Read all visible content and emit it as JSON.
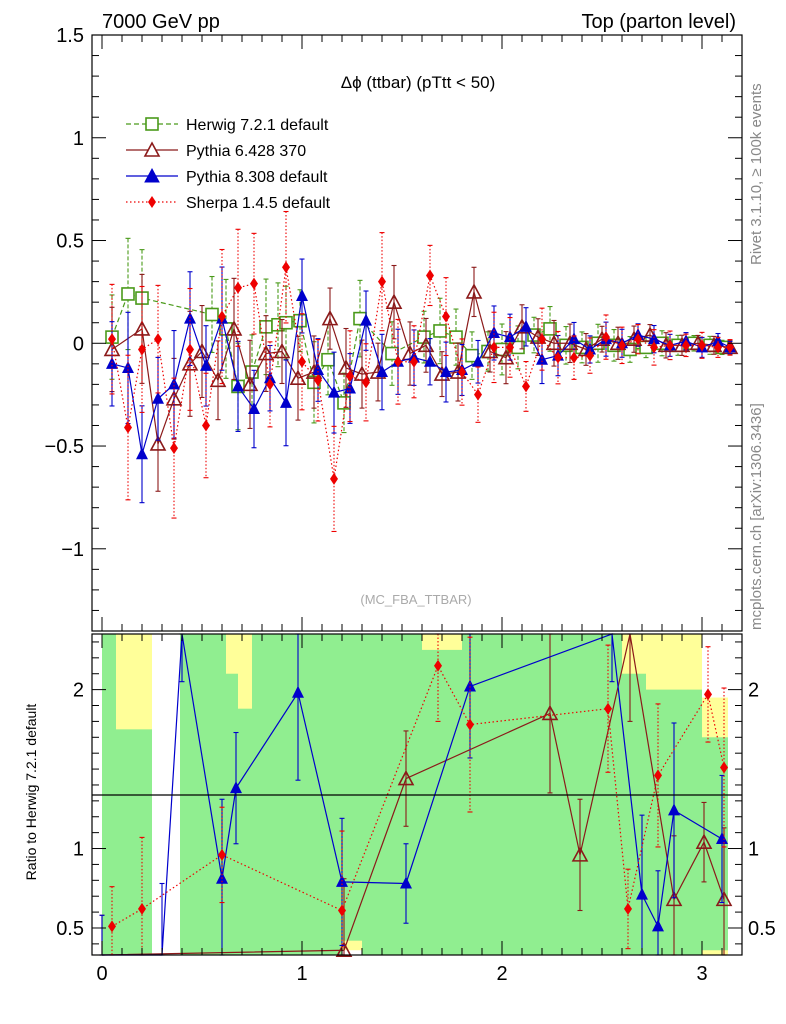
{
  "header": {
    "left": "7000 GeV pp",
    "right": "Top (parton level)"
  },
  "side_labels": {
    "rivet": "Rivet 3.1.10, ≥ 100k events",
    "mcplots": "mcplots.cern.ch [arXiv:1306.3436]"
  },
  "colors": {
    "herwig": "#4a9a1a",
    "pythia6": "#8b1a1a",
    "pythia8": "#0000cc",
    "sherpa": "#ee0000",
    "band_green": "#90ee90",
    "band_yellow": "#ffff99"
  },
  "chart_data": [
    {
      "type": "line",
      "panel": "main",
      "title": "Δϕ (ttbar) (pTtt < 50)",
      "watermark": "(MC_FBA_TTBAR)",
      "ylim": [
        -1.4,
        1.5
      ],
      "xlim": [
        -0.05,
        3.2
      ],
      "yticks": [
        -1,
        -0.5,
        0,
        0.5,
        1,
        1.5
      ],
      "ytick_labels": [
        "−1",
        "−0.5",
        "0",
        "0.5",
        "1",
        "1.5"
      ],
      "legend_position": "top-left",
      "series": [
        {
          "name": "Herwig 7.2.1 default",
          "marker": "open-square",
          "style": "dashed",
          "x": [
            0.05,
            0.13,
            0.2,
            0.55,
            0.62,
            0.68,
            0.75,
            0.82,
            0.88,
            0.92,
            0.99,
            1.06,
            1.13,
            1.21,
            1.29,
            1.45,
            1.61,
            1.69,
            1.77,
            1.85,
            1.93,
            2.0,
            2.08,
            2.16,
            2.24,
            2.32,
            2.4,
            2.48,
            2.56,
            2.64,
            2.72,
            2.8,
            2.88,
            2.96,
            3.04,
            3.1
          ],
          "y": [
            0.03,
            0.24,
            0.22,
            0.14,
            0.07,
            -0.21,
            -0.14,
            0.08,
            0.09,
            0.1,
            0.11,
            -0.19,
            -0.08,
            -0.29,
            0.12,
            -0.05,
            0.03,
            0.06,
            0.03,
            -0.06,
            -0.04,
            -0.03,
            -0.02,
            0.04,
            0.07,
            -0.01,
            -0.02,
            0.0,
            -0.01,
            -0.03,
            -0.02,
            0.0,
            -0.01,
            0.0,
            -0.01,
            -0.02
          ]
        },
        {
          "name": "Pythia 6.428 370",
          "marker": "open-triangle",
          "style": "solid",
          "x": [
            0.05,
            0.2,
            0.28,
            0.36,
            0.44,
            0.5,
            0.58,
            0.66,
            0.74,
            0.82,
            0.9,
            0.98,
            1.06,
            1.14,
            1.22,
            1.3,
            1.38,
            1.46,
            1.54,
            1.62,
            1.7,
            1.78,
            1.86,
            1.94,
            2.02,
            2.1,
            2.18,
            2.26,
            2.34,
            2.42,
            2.5,
            2.58,
            2.66,
            2.74,
            2.82,
            2.9,
            2.98,
            3.06,
            3.14
          ],
          "y": [
            -0.03,
            0.07,
            -0.49,
            -0.27,
            -0.1,
            -0.04,
            -0.18,
            0.07,
            -0.2,
            -0.05,
            -0.04,
            -0.17,
            -0.14,
            0.12,
            -0.12,
            -0.15,
            -0.14,
            0.2,
            -0.05,
            -0.01,
            -0.15,
            -0.14,
            0.25,
            -0.04,
            -0.07,
            0.08,
            0.03,
            0.0,
            0.0,
            -0.03,
            0.02,
            0.0,
            0.02,
            0.04,
            -0.01,
            -0.01,
            0.0,
            -0.01,
            -0.02
          ]
        },
        {
          "name": "Pythia 8.308 default",
          "marker": "filled-triangle",
          "style": "solid",
          "x": [
            0.05,
            0.13,
            0.2,
            0.28,
            0.36,
            0.44,
            0.52,
            0.6,
            0.68,
            0.76,
            0.84,
            0.92,
            1.0,
            1.08,
            1.16,
            1.24,
            1.32,
            1.4,
            1.48,
            1.56,
            1.64,
            1.72,
            1.8,
            1.88,
            1.96,
            2.04,
            2.12,
            2.2,
            2.28,
            2.36,
            2.44,
            2.52,
            2.6,
            2.68,
            2.76,
            2.84,
            2.92,
            3.0,
            3.08,
            3.14
          ],
          "y": [
            -0.1,
            -0.12,
            -0.54,
            -0.27,
            -0.2,
            0.12,
            -0.11,
            0.12,
            -0.21,
            -0.32,
            -0.17,
            -0.29,
            0.23,
            -0.13,
            -0.24,
            -0.22,
            0.11,
            -0.14,
            -0.09,
            -0.07,
            -0.09,
            -0.14,
            -0.13,
            -0.09,
            0.05,
            0.03,
            0.08,
            -0.08,
            -0.06,
            0.02,
            -0.03,
            0.02,
            0.0,
            0.04,
            0.02,
            -0.01,
            0.01,
            -0.02,
            0.01,
            -0.02
          ]
        },
        {
          "name": "Sherpa 1.4.5 default",
          "marker": "filled-diamond",
          "style": "dotted",
          "x": [
            0.05,
            0.13,
            0.2,
            0.28,
            0.36,
            0.44,
            0.52,
            0.6,
            0.68,
            0.76,
            0.84,
            0.92,
            1.0,
            1.08,
            1.16,
            1.24,
            1.32,
            1.4,
            1.48,
            1.56,
            1.64,
            1.72,
            1.8,
            1.88,
            1.96,
            2.04,
            2.12,
            2.2,
            2.28,
            2.36,
            2.44,
            2.52,
            2.6,
            2.68,
            2.76,
            2.84,
            2.92,
            3.0,
            3.08,
            3.14
          ],
          "y": [
            0.02,
            -0.41,
            -0.03,
            0.02,
            -0.51,
            -0.03,
            -0.4,
            0.13,
            0.27,
            0.29,
            -0.2,
            0.37,
            -0.09,
            -0.18,
            -0.66,
            -0.16,
            -0.19,
            0.3,
            -0.09,
            -0.09,
            0.33,
            0.13,
            -0.14,
            -0.25,
            -0.02,
            -0.02,
            -0.21,
            0.02,
            -0.07,
            -0.07,
            -0.06,
            0.03,
            -0.01,
            0.02,
            -0.02,
            -0.01,
            -0.01,
            -0.01,
            -0.02,
            -0.02
          ]
        }
      ]
    },
    {
      "type": "line",
      "panel": "ratio",
      "ylabel": "Ratio to Herwig 7.2.1 default",
      "ylim": [
        0.33,
        2.35
      ],
      "xlim": [
        -0.05,
        3.2
      ],
      "yticks": [
        0.5,
        1,
        2
      ],
      "ytick_labels": [
        "0.5",
        "1",
        "2"
      ],
      "xticks": [
        0,
        1,
        2,
        3
      ],
      "xtick_labels": [
        "0",
        "1",
        "2",
        "3"
      ],
      "series": [
        {
          "name": "Pythia 6.428 370",
          "marker": "open-triangle",
          "style": "solid",
          "x": [
            0.0,
            1.21,
            1.52,
            2.24,
            2.39,
            2.64,
            2.86,
            3.01,
            3.11
          ],
          "y": [
            0.33,
            0.36,
            1.44,
            1.85,
            0.96,
            2.35,
            0.68,
            1.04,
            0.68
          ]
        },
        {
          "name": "Pythia 8.308 default",
          "marker": "filled-triangle",
          "style": "solid",
          "x": [
            0.0,
            0.3,
            0.4,
            0.6,
            0.67,
            0.98,
            1.2,
            1.52,
            1.84,
            2.55,
            2.7,
            2.78,
            2.86,
            3.1
          ],
          "y": [
            0.33,
            0.33,
            2.35,
            0.81,
            1.38,
            1.98,
            0.79,
            0.78,
            2.02,
            2.35,
            0.71,
            0.51,
            1.24,
            1.06
          ]
        },
        {
          "name": "Sherpa 1.4.5 default",
          "marker": "filled-diamond",
          "style": "dotted",
          "x": [
            0.05,
            0.2,
            0.6,
            1.2,
            1.68,
            1.84,
            2.53,
            2.63,
            2.78,
            3.03,
            3.11
          ],
          "y": [
            0.51,
            0.62,
            0.96,
            0.61,
            2.15,
            1.78,
            1.88,
            0.62,
            1.46,
            1.97,
            1.51
          ]
        }
      ],
      "bands": [
        {
          "x0": 0.0,
          "x1": 0.07,
          "green": [
            0.33,
            2.35
          ],
          "yellow": [
            0.33,
            2.35
          ]
        },
        {
          "x0": 0.07,
          "x1": 0.25,
          "green": [
            0.33,
            1.75
          ],
          "yellow": [
            0.33,
            2.35
          ]
        },
        {
          "x0": 0.39,
          "x1": 0.62,
          "green": [
            0.33,
            2.35
          ],
          "yellow": [
            0.33,
            2.35
          ]
        },
        {
          "x0": 0.62,
          "x1": 0.68,
          "green": [
            0.33,
            2.1
          ],
          "yellow": [
            0.33,
            2.35
          ]
        },
        {
          "x0": 0.68,
          "x1": 0.75,
          "green": [
            0.33,
            1.88
          ],
          "yellow": [
            0.33,
            2.35
          ]
        },
        {
          "x0": 0.75,
          "x1": 1.2,
          "green": [
            0.33,
            2.35
          ],
          "yellow": [
            0.33,
            2.35
          ]
        },
        {
          "x0": 1.2,
          "x1": 1.3,
          "green": [
            0.42,
            2.35
          ],
          "yellow": [
            0.36,
            2.35
          ]
        },
        {
          "x0": 1.3,
          "x1": 1.6,
          "green": [
            0.33,
            2.35
          ],
          "yellow": [
            0.33,
            2.35
          ]
        },
        {
          "x0": 1.6,
          "x1": 1.8,
          "green": [
            0.33,
            2.25
          ],
          "yellow": [
            0.33,
            2.35
          ]
        },
        {
          "x0": 1.8,
          "x1": 2.2,
          "green": [
            0.33,
            2.35
          ],
          "yellow": [
            0.33,
            2.35
          ]
        },
        {
          "x0": 2.2,
          "x1": 2.6,
          "green": [
            0.33,
            2.35
          ],
          "yellow": [
            0.33,
            2.35
          ]
        },
        {
          "x0": 2.6,
          "x1": 2.72,
          "green": [
            0.33,
            2.1
          ],
          "yellow": [
            0.33,
            2.35
          ]
        },
        {
          "x0": 2.72,
          "x1": 3.0,
          "green": [
            0.33,
            2.0
          ],
          "yellow": [
            0.33,
            2.35
          ]
        },
        {
          "x0": 3.0,
          "x1": 3.13,
          "green": [
            0.36,
            1.7
          ],
          "yellow": [
            0.33,
            1.95
          ]
        }
      ]
    }
  ]
}
